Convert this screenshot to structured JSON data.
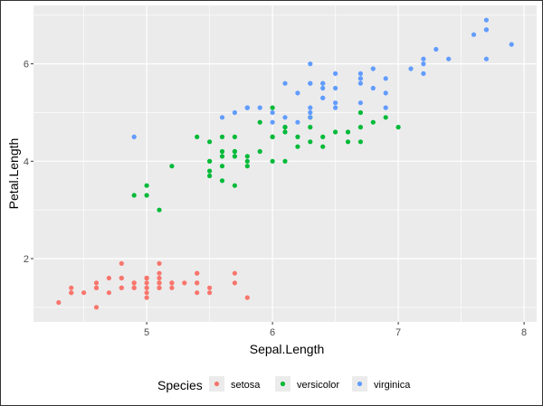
{
  "chart_data": {
    "type": "scatter",
    "title": "",
    "xlabel": "Sepal.Length",
    "ylabel": "Petal.Length",
    "xlim": [
      4.1,
      8.1
    ],
    "ylim": [
      0.7,
      7.2
    ],
    "x_ticks": [
      5,
      6,
      7,
      8
    ],
    "x_tick_labels": [
      "5",
      "6",
      "7",
      "8"
    ],
    "y_ticks": [
      2,
      4,
      6
    ],
    "y_tick_labels": [
      "2",
      "4",
      "6"
    ],
    "grid": true,
    "legend": {
      "title": "Species",
      "position": "bottom",
      "entries": [
        "setosa",
        "versicolor",
        "virginica"
      ]
    },
    "colors": {
      "setosa": "#F8766D",
      "versicolor": "#00BA38",
      "virginica": "#619CFF",
      "panel": "#EBEBEB",
      "grid": "#FFFFFF"
    },
    "series": [
      {
        "name": "setosa",
        "points": [
          [
            5.1,
            1.4
          ],
          [
            4.9,
            1.4
          ],
          [
            4.7,
            1.3
          ],
          [
            4.6,
            1.5
          ],
          [
            5.0,
            1.4
          ],
          [
            5.4,
            1.7
          ],
          [
            4.6,
            1.4
          ],
          [
            5.0,
            1.5
          ],
          [
            4.4,
            1.4
          ],
          [
            4.9,
            1.5
          ],
          [
            5.4,
            1.5
          ],
          [
            4.8,
            1.6
          ],
          [
            4.8,
            1.4
          ],
          [
            4.3,
            1.1
          ],
          [
            5.8,
            1.2
          ],
          [
            5.7,
            1.5
          ],
          [
            5.4,
            1.3
          ],
          [
            5.1,
            1.4
          ],
          [
            5.7,
            1.7
          ],
          [
            5.1,
            1.5
          ],
          [
            5.4,
            1.7
          ],
          [
            5.1,
            1.5
          ],
          [
            4.6,
            1.0
          ],
          [
            5.1,
            1.7
          ],
          [
            4.8,
            1.9
          ],
          [
            5.0,
            1.6
          ],
          [
            5.0,
            1.6
          ],
          [
            5.2,
            1.5
          ],
          [
            5.2,
            1.4
          ],
          [
            4.7,
            1.6
          ],
          [
            4.8,
            1.6
          ],
          [
            5.4,
            1.5
          ],
          [
            5.2,
            1.5
          ],
          [
            5.5,
            1.4
          ],
          [
            4.9,
            1.5
          ],
          [
            5.0,
            1.2
          ],
          [
            5.5,
            1.3
          ],
          [
            4.9,
            1.4
          ],
          [
            4.4,
            1.3
          ],
          [
            5.1,
            1.5
          ],
          [
            5.0,
            1.3
          ],
          [
            4.5,
            1.3
          ],
          [
            4.4,
            1.3
          ],
          [
            5.0,
            1.6
          ],
          [
            5.1,
            1.9
          ],
          [
            4.8,
            1.4
          ],
          [
            5.1,
            1.6
          ],
          [
            4.6,
            1.4
          ],
          [
            5.3,
            1.5
          ],
          [
            5.0,
            1.4
          ]
        ]
      },
      {
        "name": "versicolor",
        "points": [
          [
            7.0,
            4.7
          ],
          [
            6.4,
            4.5
          ],
          [
            6.9,
            4.9
          ],
          [
            5.5,
            4.0
          ],
          [
            6.5,
            4.6
          ],
          [
            5.7,
            4.5
          ],
          [
            6.3,
            4.7
          ],
          [
            4.9,
            3.3
          ],
          [
            6.6,
            4.6
          ],
          [
            5.2,
            3.9
          ],
          [
            5.0,
            3.5
          ],
          [
            5.9,
            4.2
          ],
          [
            6.0,
            4.0
          ],
          [
            6.1,
            4.7
          ],
          [
            5.6,
            3.6
          ],
          [
            6.7,
            4.4
          ],
          [
            5.6,
            4.5
          ],
          [
            5.8,
            4.1
          ],
          [
            6.2,
            4.5
          ],
          [
            5.6,
            3.9
          ],
          [
            5.9,
            4.8
          ],
          [
            6.1,
            4.0
          ],
          [
            6.3,
            4.9
          ],
          [
            6.1,
            4.7
          ],
          [
            6.4,
            4.3
          ],
          [
            6.6,
            4.4
          ],
          [
            6.8,
            4.8
          ],
          [
            6.7,
            5.0
          ],
          [
            6.0,
            4.5
          ],
          [
            5.7,
            3.5
          ],
          [
            5.5,
            3.8
          ],
          [
            5.5,
            3.7
          ],
          [
            5.8,
            3.9
          ],
          [
            6.0,
            5.1
          ],
          [
            5.4,
            4.5
          ],
          [
            6.0,
            4.5
          ],
          [
            6.7,
            4.7
          ],
          [
            6.3,
            4.4
          ],
          [
            5.6,
            4.1
          ],
          [
            5.5,
            4.0
          ],
          [
            5.5,
            4.4
          ],
          [
            6.1,
            4.6
          ],
          [
            5.8,
            4.0
          ],
          [
            5.0,
            3.3
          ],
          [
            5.6,
            4.2
          ],
          [
            5.7,
            4.2
          ],
          [
            5.7,
            4.2
          ],
          [
            6.2,
            4.3
          ],
          [
            5.1,
            3.0
          ],
          [
            5.7,
            4.1
          ]
        ]
      },
      {
        "name": "virginica",
        "points": [
          [
            6.3,
            6.0
          ],
          [
            5.8,
            5.1
          ],
          [
            7.1,
            5.9
          ],
          [
            6.3,
            5.6
          ],
          [
            6.5,
            5.8
          ],
          [
            7.6,
            6.6
          ],
          [
            4.9,
            4.5
          ],
          [
            7.3,
            6.3
          ],
          [
            6.7,
            5.8
          ],
          [
            7.2,
            6.1
          ],
          [
            6.5,
            5.1
          ],
          [
            6.4,
            5.3
          ],
          [
            6.8,
            5.5
          ],
          [
            5.7,
            5.0
          ],
          [
            5.8,
            5.1
          ],
          [
            6.4,
            5.3
          ],
          [
            6.5,
            5.5
          ],
          [
            7.7,
            6.7
          ],
          [
            7.7,
            6.9
          ],
          [
            6.0,
            5.0
          ],
          [
            6.9,
            5.7
          ],
          [
            5.6,
            4.9
          ],
          [
            7.7,
            6.7
          ],
          [
            6.3,
            4.9
          ],
          [
            6.7,
            5.7
          ],
          [
            7.2,
            6.0
          ],
          [
            6.2,
            4.8
          ],
          [
            6.1,
            4.9
          ],
          [
            6.4,
            5.6
          ],
          [
            7.2,
            5.8
          ],
          [
            7.4,
            6.1
          ],
          [
            7.9,
            6.4
          ],
          [
            6.4,
            5.6
          ],
          [
            6.3,
            5.1
          ],
          [
            6.1,
            5.6
          ],
          [
            7.7,
            6.1
          ],
          [
            6.3,
            5.6
          ],
          [
            6.4,
            5.5
          ],
          [
            6.0,
            4.8
          ],
          [
            6.9,
            5.4
          ],
          [
            6.7,
            5.6
          ],
          [
            6.9,
            5.1
          ],
          [
            5.8,
            5.1
          ],
          [
            6.8,
            5.9
          ],
          [
            6.7,
            5.7
          ],
          [
            6.7,
            5.2
          ],
          [
            6.3,
            5.0
          ],
          [
            6.5,
            5.2
          ],
          [
            6.2,
            5.4
          ],
          [
            5.9,
            5.1
          ]
        ]
      }
    ]
  }
}
